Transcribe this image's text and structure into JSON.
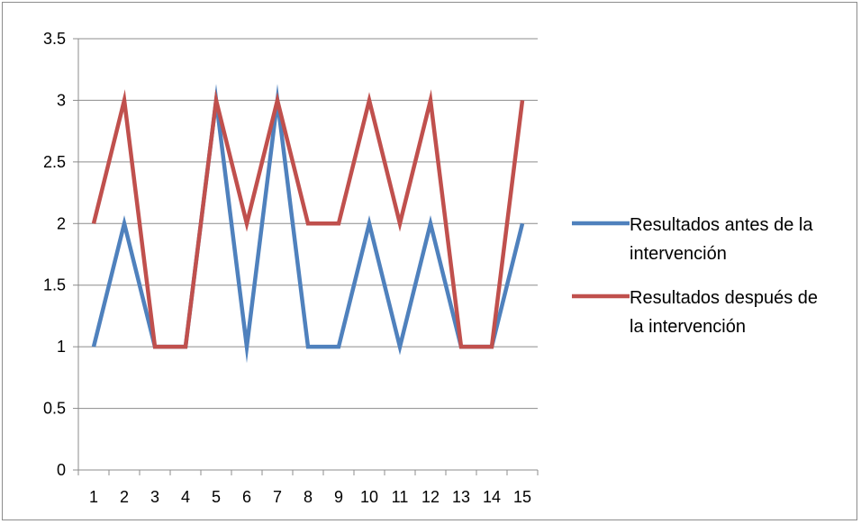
{
  "chart_data": {
    "type": "line",
    "title": "",
    "xlabel": "",
    "ylabel": "",
    "x": [
      "1",
      "2",
      "3",
      "4",
      "5",
      "6",
      "7",
      "8",
      "9",
      "10",
      "11",
      "12",
      "13",
      "14",
      "15"
    ],
    "ylim": [
      0,
      3.5
    ],
    "yticks": [
      "0",
      "0.5",
      "1",
      "1.5",
      "2",
      "2.5",
      "3",
      "3.5"
    ],
    "grid": true,
    "legend_position": "right",
    "series": [
      {
        "name": "Resultados antes de la intervención",
        "legend_lines": [
          "Resultados antes de la",
          "intervención"
        ],
        "color": "#4f81bd",
        "values": [
          1,
          2,
          1,
          1,
          3,
          1,
          3,
          1,
          1,
          2,
          1,
          2,
          1,
          1,
          2
        ]
      },
      {
        "name": "Resultados después de la intervención",
        "legend_lines": [
          "Resultados después de",
          "la intervención"
        ],
        "color": "#c0504d",
        "values": [
          2,
          3,
          1,
          1,
          3,
          2,
          3,
          2,
          2,
          3,
          2,
          3,
          1,
          1,
          3
        ]
      }
    ]
  }
}
